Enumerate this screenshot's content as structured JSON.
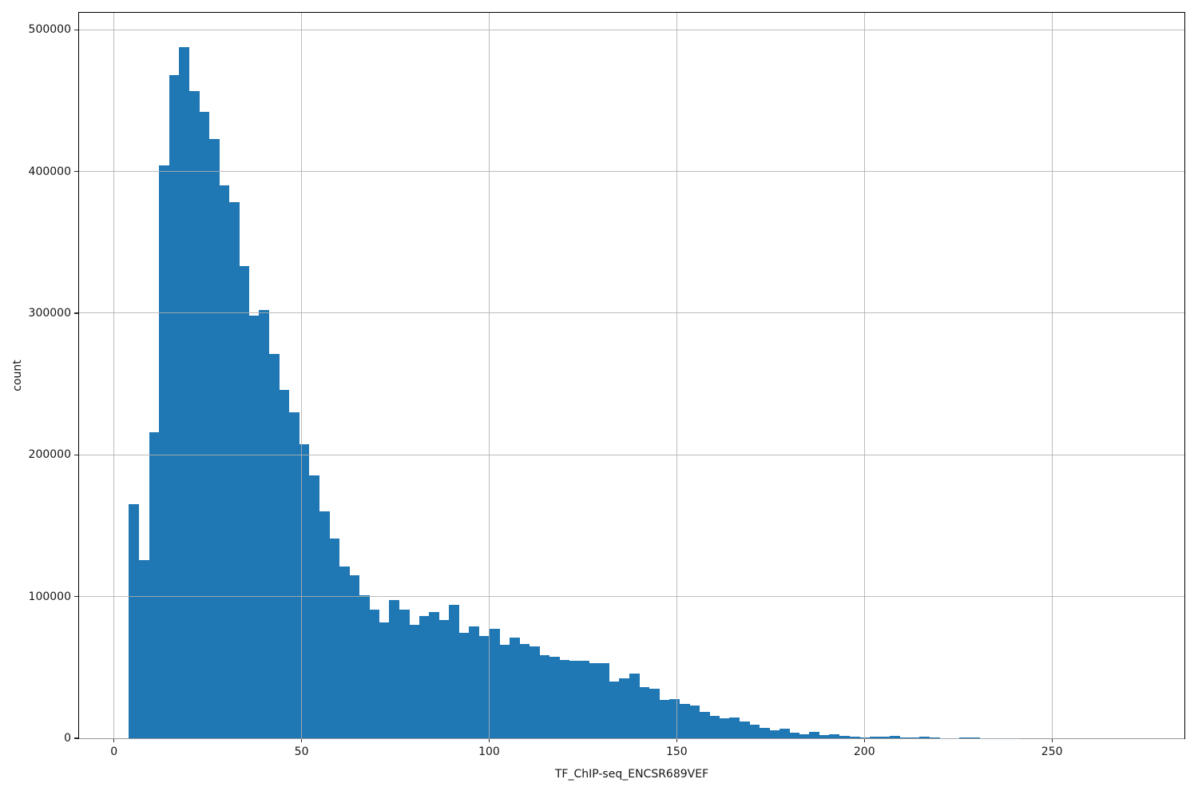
{
  "chart_data": {
    "type": "bar",
    "subtype": "histogram",
    "title": "",
    "xlabel": "TF_ChIP-seq_ENCSR689VEF",
    "ylabel": "count",
    "bar_color": "#1f77b4",
    "grid_color": "#b0b0b0",
    "grid": true,
    "legend": false,
    "xlim": [
      -9.3,
      285.3
    ],
    "ylim": [
      0,
      512000
    ],
    "x_ticks": [
      0,
      50,
      100,
      150,
      200,
      250
    ],
    "y_ticks": [
      0,
      100000,
      200000,
      300000,
      400000,
      500000
    ],
    "bin_start": 4.0,
    "bin_width": 2.6667,
    "counts": [
      165000,
      125500,
      216000,
      404500,
      468000,
      487500,
      457000,
      442000,
      423000,
      390000,
      378500,
      333000,
      298500,
      302500,
      271000,
      246000,
      230000,
      207500,
      185500,
      160000,
      141000,
      121000,
      115000,
      101000,
      91000,
      81500,
      97500,
      91000,
      80000,
      86000,
      89000,
      83500,
      94000,
      74500,
      79000,
      72000,
      77500,
      66000,
      71000,
      66500,
      65000,
      58500,
      57500,
      55500,
      54500,
      54500,
      53000,
      53000,
      40000,
      42500,
      45500,
      36000,
      35000,
      27000,
      27500,
      24000,
      23000,
      18500,
      16000,
      14000,
      14500,
      12000,
      9500,
      7500,
      5500,
      6500,
      3800,
      2600,
      4500,
      2300,
      2600,
      1500,
      1000,
      500,
      1400,
      900,
      1700,
      800,
      300,
      1100,
      600,
      150,
      120,
      300,
      800,
      100,
      80,
      60,
      50,
      40,
      30,
      25,
      20,
      15,
      12,
      10,
      8,
      5,
      3,
      2
    ]
  }
}
